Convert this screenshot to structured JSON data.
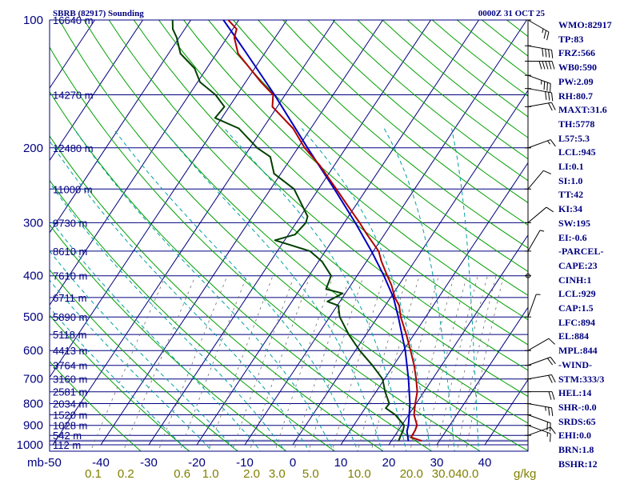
{
  "chart_data": {
    "type": "line",
    "title": "SBRB (82917) Sounding",
    "valid_time": "0000Z 31 OCT 25",
    "x_axis": {
      "unit_label": "mb",
      "ticks": [
        -50,
        -40,
        -30,
        -20,
        -10,
        0,
        10,
        20,
        30,
        40
      ]
    },
    "y_axis": {
      "scale": "log",
      "ylim": [
        1000,
        100
      ],
      "ticks": [
        100,
        200,
        300,
        400,
        500,
        600,
        700,
        800,
        900,
        1000
      ]
    },
    "height_labels": [
      {
        "p": 100,
        "text": "16640 m"
      },
      {
        "p": 150,
        "text": "14270 m"
      },
      {
        "p": 200,
        "text": "12480 m"
      },
      {
        "p": 250,
        "text": "11000 m"
      },
      {
        "p": 300,
        "text": "9730 m"
      },
      {
        "p": 350,
        "text": "8610 m"
      },
      {
        "p": 400,
        "text": "7610 m"
      },
      {
        "p": 450,
        "text": "6711 m"
      },
      {
        "p": 500,
        "text": "5890 m"
      },
      {
        "p": 550,
        "text": "5118 m"
      },
      {
        "p": 600,
        "text": "4413 m"
      },
      {
        "p": 650,
        "text": "3764 m"
      },
      {
        "p": 700,
        "text": "3160 m"
      },
      {
        "p": 750,
        "text": "2581 m"
      },
      {
        "p": 800,
        "text": "2034 m"
      },
      {
        "p": 850,
        "text": "1520 m"
      },
      {
        "p": 900,
        "text": "1028 m"
      },
      {
        "p": 950,
        "text": "542 m"
      },
      {
        "p": 1000,
        "text": "112 m"
      }
    ],
    "mixing_ratio_labels": [
      {
        "w": 0.1,
        "text": "0.1"
      },
      {
        "w": 0.2,
        "text": "0.2"
      },
      {
        "w": 0.6,
        "text": "0.6"
      },
      {
        "w": 1.0,
        "text": "1.0"
      },
      {
        "w": 2.0,
        "text": "2.0"
      },
      {
        "w": 3.0,
        "text": "3.0"
      },
      {
        "w": 5.0,
        "text": "5.0"
      },
      {
        "w": 10.0,
        "text": "10.0"
      },
      {
        "w": 20.0,
        "text": "20.0"
      },
      {
        "w": 30.0,
        "text": "30.0"
      },
      {
        "w": 40.0,
        "text": "40.0"
      }
    ],
    "mixing_ratio_unit": "g/kg",
    "series": [
      {
        "key": "temperature",
        "color": "#b00000",
        "points": [
          [
            978,
            26.2
          ],
          [
            960,
            23.6
          ],
          [
            925,
            23.5
          ],
          [
            900,
            23.2
          ],
          [
            850,
            21.1
          ],
          [
            800,
            19.8
          ],
          [
            750,
            18.6
          ],
          [
            700,
            16.6
          ],
          [
            650,
            14.3
          ],
          [
            600,
            11.5
          ],
          [
            550,
            8.4
          ],
          [
            500,
            4.8
          ],
          [
            470,
            2.9
          ],
          [
            450,
            0.9
          ],
          [
            420,
            -1.6
          ],
          [
            400,
            -3.7
          ],
          [
            370,
            -6.9
          ],
          [
            350,
            -8.9
          ],
          [
            320,
            -13.6
          ],
          [
            300,
            -16.8
          ],
          [
            270,
            -22.3
          ],
          [
            250,
            -26.3
          ],
          [
            220,
            -33.0
          ],
          [
            200,
            -38.6
          ],
          [
            180,
            -43.7
          ],
          [
            160,
            -51.0
          ],
          [
            150,
            -52.5
          ],
          [
            140,
            -56.8
          ],
          [
            120,
            -65.5
          ],
          [
            110,
            -68.5
          ],
          [
            105,
            -69.2
          ],
          [
            100,
            -72.2
          ]
        ]
      },
      {
        "key": "dewpoint",
        "color": "#004000",
        "points": [
          [
            978,
            21.5
          ],
          [
            960,
            21.3
          ],
          [
            925,
            21.0
          ],
          [
            900,
            20.5
          ],
          [
            850,
            17.2
          ],
          [
            820,
            14.3
          ],
          [
            800,
            14.4
          ],
          [
            750,
            11.9
          ],
          [
            700,
            9.6
          ],
          [
            650,
            5.6
          ],
          [
            600,
            0.9
          ],
          [
            550,
            -3.6
          ],
          [
            500,
            -7.9
          ],
          [
            470,
            -9.8
          ],
          [
            460,
            -12.6
          ],
          [
            450,
            -11.6
          ],
          [
            440,
            -10.6
          ],
          [
            430,
            -14.6
          ],
          [
            400,
            -15.4
          ],
          [
            370,
            -19.3
          ],
          [
            350,
            -23.2
          ],
          [
            330,
            -32.0
          ],
          [
            320,
            -28.6
          ],
          [
            300,
            -28.0
          ],
          [
            290,
            -28.5
          ],
          [
            250,
            -35.1
          ],
          [
            230,
            -41.4
          ],
          [
            210,
            -44.5
          ],
          [
            200,
            -48.5
          ],
          [
            180,
            -55.0
          ],
          [
            170,
            -61.4
          ],
          [
            160,
            -61.0
          ],
          [
            150,
            -64.5
          ],
          [
            140,
            -69.5
          ],
          [
            130,
            -72.5
          ],
          [
            120,
            -77.5
          ],
          [
            110,
            -80.5
          ],
          [
            105,
            -82.5
          ],
          [
            100,
            -83.8
          ]
        ]
      },
      {
        "key": "parcel",
        "color": "#0000c0",
        "points": [
          [
            978,
            23.5
          ],
          [
            929,
            21.9
          ],
          [
            900,
            21.4
          ],
          [
            850,
            20.1
          ],
          [
            800,
            18.7
          ],
          [
            700,
            15.0
          ],
          [
            600,
            10.4
          ],
          [
            500,
            4.3
          ],
          [
            450,
            0.6
          ],
          [
            400,
            -4.4
          ],
          [
            350,
            -10.4
          ],
          [
            300,
            -17.7
          ],
          [
            250,
            -26.7
          ],
          [
            200,
            -38.0
          ],
          [
            150,
            -52.2
          ],
          [
            120,
            -63.7
          ],
          [
            110,
            -68.2
          ],
          [
            100,
            -73.2
          ]
        ]
      }
    ],
    "wind_barbs": [
      {
        "p": 100,
        "dir": 120,
        "kt": 25
      },
      {
        "p": 115,
        "dir": 100,
        "kt": 40
      },
      {
        "p": 125,
        "dir": 90,
        "kt": 50
      },
      {
        "p": 135,
        "dir": 110,
        "kt": 35
      },
      {
        "p": 145,
        "dir": 100,
        "kt": 30
      },
      {
        "p": 160,
        "dir": 80,
        "kt": 20
      },
      {
        "p": 200,
        "dir": 70,
        "kt": 15
      },
      {
        "p": 250,
        "dir": 40,
        "kt": 10
      },
      {
        "p": 300,
        "dir": 50,
        "kt": 10
      },
      {
        "p": 350,
        "dir": 30,
        "kt": 5
      },
      {
        "p": 400,
        "dir": 0,
        "kt": 0
      },
      {
        "p": 500,
        "dir": 20,
        "kt": 5
      },
      {
        "p": 600,
        "dir": 60,
        "kt": 10
      },
      {
        "p": 650,
        "dir": 70,
        "kt": 20
      },
      {
        "p": 700,
        "dir": 80,
        "kt": 20
      },
      {
        "p": 750,
        "dir": 90,
        "kt": 20
      },
      {
        "p": 800,
        "dir": 100,
        "kt": 25
      },
      {
        "p": 850,
        "dir": 110,
        "kt": 20
      },
      {
        "p": 900,
        "dir": 110,
        "kt": 15
      },
      {
        "p": 950,
        "dir": 70,
        "kt": 10
      }
    ],
    "indices": [
      "WMO:82917",
      "TP:83",
      "FRZ:566",
      "WB0:590",
      "PW:2.09",
      "RH:80.7",
      "MAXT:31.6",
      "TH:5778",
      "L57:5.3",
      "LCL:945",
      "LI:0.1",
      "SI:1.0",
      "TT:42",
      "KI:34",
      "SW:195",
      "EI:-0.6",
      "-PARCEL-",
      "CAPE:23",
      "CINH:1",
      "LCL:929",
      "CAP:1.5",
      "LFC:894",
      "EL:884",
      "MPL:844",
      "-WIND-",
      "STM:333/3",
      "HEL:14",
      "SHR-:0.0",
      "SRDS:65",
      "EHI:0.0",
      "BRN:1.8",
      "BSHR:12"
    ],
    "colors": {
      "frame": "#000080",
      "isotherm": "#000080",
      "dry_adiabat": "#00a000",
      "moist_adiabat": "#00a0a0",
      "mixing_ratio": "#707070",
      "temperature": "#b00000",
      "dewpoint": "#004000",
      "parcel": "#0000c0",
      "text": "#000080",
      "mix_label": "#808000"
    }
  }
}
